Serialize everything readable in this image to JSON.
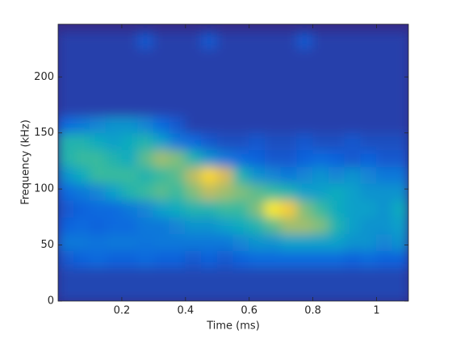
{
  "chart_data": {
    "type": "heatmap",
    "xlabel": "Time (ms)",
    "ylabel": "Frequency (kHz)",
    "xlim": [
      0,
      1.1
    ],
    "ylim": [
      0,
      247
    ],
    "xticks": [
      0.2,
      0.4,
      0.6,
      0.8,
      1
    ],
    "yticks": [
      0,
      50,
      100,
      150,
      200
    ],
    "zlim": [
      0,
      1
    ],
    "colormap": [
      "#352a87",
      "#0d64e0",
      "#1485d4",
      "#06a7c6",
      "#38b99e",
      "#92bf73",
      "#d9ba56",
      "#fcce2e",
      "#f9fb0e"
    ],
    "x": [
      0.025,
      0.075,
      0.125,
      0.175,
      0.225,
      0.275,
      0.325,
      0.375,
      0.425,
      0.475,
      0.525,
      0.575,
      0.625,
      0.675,
      0.725,
      0.775,
      0.825,
      0.875,
      0.925,
      0.975,
      1.025,
      1.075
    ],
    "y": [
      7.5,
      22.5,
      37.5,
      52.5,
      67.5,
      82.5,
      97.5,
      112.5,
      127.5,
      142.5,
      157.5,
      172.5,
      187.5,
      202.5,
      217.5,
      232.5
    ],
    "z": [
      [
        0.06,
        0.06,
        0.06,
        0.06,
        0.06,
        0.06,
        0.06,
        0.06,
        0.06,
        0.06,
        0.06,
        0.06,
        0.06,
        0.06,
        0.06,
        0.06,
        0.06,
        0.06,
        0.06,
        0.06,
        0.06,
        0.06
      ],
      [
        0.06,
        0.06,
        0.06,
        0.06,
        0.06,
        0.06,
        0.06,
        0.06,
        0.06,
        0.06,
        0.06,
        0.06,
        0.06,
        0.06,
        0.06,
        0.06,
        0.06,
        0.06,
        0.06,
        0.06,
        0.06,
        0.06
      ],
      [
        0.1,
        0.12,
        0.15,
        0.12,
        0.12,
        0.15,
        0.12,
        0.12,
        0.1,
        0.12,
        0.1,
        0.12,
        0.15,
        0.15,
        0.15,
        0.15,
        0.15,
        0.15,
        0.12,
        0.15,
        0.12,
        0.12
      ],
      [
        0.2,
        0.2,
        0.18,
        0.2,
        0.2,
        0.18,
        0.2,
        0.2,
        0.2,
        0.2,
        0.2,
        0.25,
        0.3,
        0.3,
        0.35,
        0.35,
        0.35,
        0.35,
        0.3,
        0.3,
        0.25,
        0.3
      ],
      [
        0.12,
        0.15,
        0.12,
        0.15,
        0.15,
        0.2,
        0.2,
        0.25,
        0.3,
        0.3,
        0.35,
        0.4,
        0.45,
        0.55,
        0.65,
        0.65,
        0.6,
        0.45,
        0.35,
        0.3,
        0.3,
        0.35
      ],
      [
        0.1,
        0.12,
        0.15,
        0.15,
        0.2,
        0.25,
        0.35,
        0.4,
        0.45,
        0.45,
        0.5,
        0.5,
        0.6,
        0.95,
        0.85,
        0.6,
        0.5,
        0.4,
        0.35,
        0.35,
        0.3,
        0.4
      ],
      [
        0.15,
        0.2,
        0.25,
        0.35,
        0.45,
        0.5,
        0.55,
        0.5,
        0.6,
        0.7,
        0.65,
        0.6,
        0.55,
        0.5,
        0.45,
        0.35,
        0.35,
        0.4,
        0.35,
        0.3,
        0.3,
        0.3
      ],
      [
        0.3,
        0.4,
        0.5,
        0.5,
        0.5,
        0.45,
        0.5,
        0.55,
        0.7,
        0.9,
        0.75,
        0.45,
        0.3,
        0.25,
        0.2,
        0.25,
        0.3,
        0.25,
        0.3,
        0.25,
        0.2,
        0.2
      ],
      [
        0.45,
        0.5,
        0.5,
        0.45,
        0.4,
        0.55,
        0.65,
        0.6,
        0.45,
        0.3,
        0.2,
        0.15,
        0.12,
        0.1,
        0.1,
        0.12,
        0.15,
        0.12,
        0.1,
        0.12,
        0.1,
        0.1
      ],
      [
        0.45,
        0.45,
        0.4,
        0.35,
        0.4,
        0.45,
        0.35,
        0.2,
        0.15,
        0.1,
        0.08,
        0.08,
        0.1,
        0.08,
        0.08,
        0.1,
        0.08,
        0.08,
        0.1,
        0.08,
        0.08,
        0.08
      ],
      [
        0.15,
        0.2,
        0.25,
        0.3,
        0.3,
        0.25,
        0.15,
        0.1,
        0.05,
        0.05,
        0.05,
        0.05,
        0.05,
        0.05,
        0.05,
        0.05,
        0.05,
        0.05,
        0.05,
        0.05,
        0.05,
        0.05
      ],
      [
        0.05,
        0.05,
        0.05,
        0.05,
        0.05,
        0.05,
        0.05,
        0.05,
        0.05,
        0.05,
        0.05,
        0.05,
        0.05,
        0.05,
        0.05,
        0.05,
        0.05,
        0.05,
        0.05,
        0.05,
        0.05,
        0.05
      ],
      [
        0.05,
        0.05,
        0.05,
        0.05,
        0.05,
        0.05,
        0.05,
        0.05,
        0.05,
        0.05,
        0.05,
        0.05,
        0.05,
        0.05,
        0.05,
        0.05,
        0.05,
        0.05,
        0.05,
        0.05,
        0.05,
        0.05
      ],
      [
        0.05,
        0.05,
        0.05,
        0.05,
        0.05,
        0.05,
        0.05,
        0.05,
        0.05,
        0.05,
        0.05,
        0.05,
        0.05,
        0.05,
        0.05,
        0.05,
        0.05,
        0.05,
        0.05,
        0.05,
        0.05,
        0.05
      ],
      [
        0.05,
        0.05,
        0.05,
        0.05,
        0.05,
        0.05,
        0.05,
        0.05,
        0.05,
        0.05,
        0.05,
        0.05,
        0.05,
        0.05,
        0.05,
        0.05,
        0.05,
        0.05,
        0.05,
        0.05,
        0.05,
        0.05
      ],
      [
        0.05,
        0.05,
        0.05,
        0.05,
        0.05,
        0.1,
        0.05,
        0.05,
        0.05,
        0.1,
        0.05,
        0.05,
        0.05,
        0.05,
        0.05,
        0.1,
        0.05,
        0.05,
        0.05,
        0.05,
        0.05,
        0.05
      ]
    ]
  }
}
